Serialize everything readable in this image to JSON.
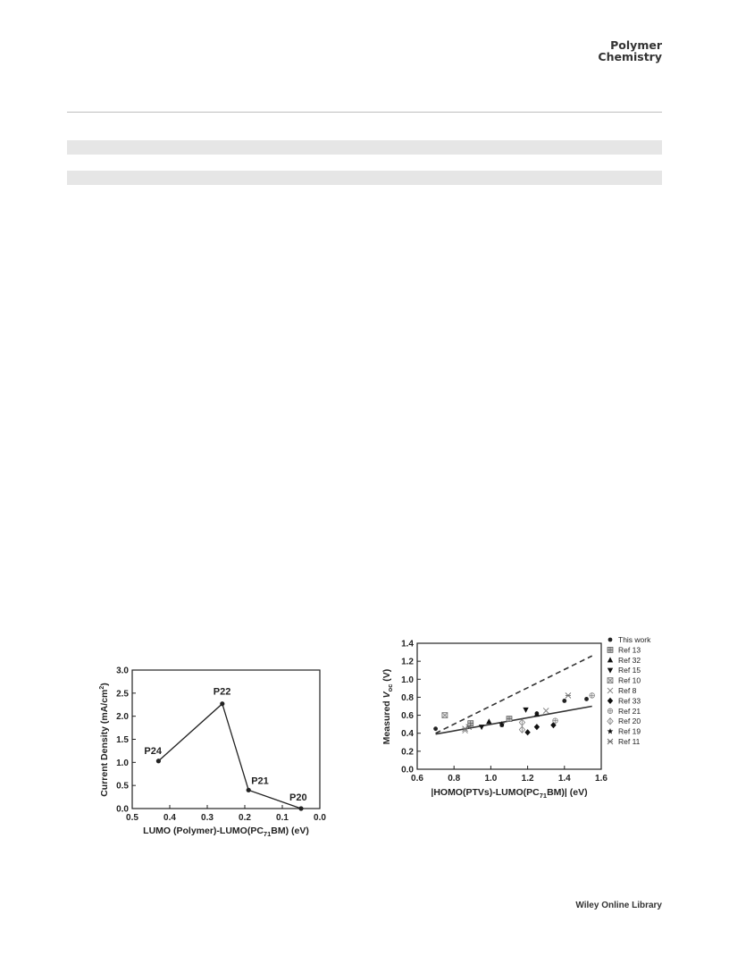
{
  "header": {
    "journal_line1": "Polymer",
    "journal_line2": "Chemistry"
  },
  "footer": {
    "text": "Wiley Online Library"
  },
  "chart_data": [
    {
      "type": "line",
      "title": "",
      "xlabel": "LUMO (Polymer)-LUMO(PC71BM) (eV)",
      "ylabel": "Current Density (mA/cm2)",
      "xlim": [
        0.5,
        0.0
      ],
      "ylim": [
        0.0,
        3.0
      ],
      "x_ticks": [
        "0.5",
        "0.4",
        "0.3",
        "0.2",
        "0.1",
        "0.0"
      ],
      "y_ticks": [
        "0.0",
        "0.5",
        "1.0",
        "1.5",
        "2.0",
        "2.5",
        "3.0"
      ],
      "points": [
        {
          "label": "P24",
          "x": 0.43,
          "y": 1.03
        },
        {
          "label": "P22",
          "x": 0.26,
          "y": 2.27
        },
        {
          "label": "P21",
          "x": 0.19,
          "y": 0.4
        },
        {
          "label": "P20",
          "x": 0.05,
          "y": 0.0
        }
      ]
    },
    {
      "type": "scatter",
      "title": "",
      "xlabel": "|HOMO(PTVs)-LUMO(PC71BM)| (eV)",
      "ylabel": "Measured Voc (V)",
      "xlim": [
        0.6,
        1.6
      ],
      "ylim": [
        0.0,
        1.4
      ],
      "x_ticks": [
        "0.6",
        "0.8",
        "1.0",
        "1.2",
        "1.4",
        "1.6"
      ],
      "y_ticks": [
        "0.0",
        "0.2",
        "0.4",
        "0.6",
        "0.8",
        "1.0",
        "1.2",
        "1.4"
      ],
      "legend_position": "right",
      "series": [
        {
          "name": "This work",
          "marker": "circle",
          "points": [
            [
              0.7,
              0.45
            ],
            [
              1.06,
              0.49
            ],
            [
              1.25,
              0.62
            ],
            [
              1.4,
              0.76
            ],
            [
              1.52,
              0.78
            ]
          ]
        },
        {
          "name": "Ref 13",
          "marker": "square-hatched",
          "points": [
            [
              0.89,
              0.51
            ],
            [
              1.1,
              0.56
            ]
          ]
        },
        {
          "name": "Ref 32",
          "marker": "triangle-up",
          "points": [
            [
              0.99,
              0.53
            ],
            [
              1.25,
              0.61
            ]
          ]
        },
        {
          "name": "Ref 15",
          "marker": "triangle-down",
          "points": [
            [
              0.95,
              0.47
            ],
            [
              1.19,
              0.66
            ]
          ]
        },
        {
          "name": "Ref 10",
          "marker": "square-cross",
          "points": [
            [
              0.75,
              0.6
            ]
          ]
        },
        {
          "name": "Ref 8",
          "marker": "x",
          "points": [
            [
              0.86,
              0.43
            ],
            [
              1.3,
              0.65
            ]
          ]
        },
        {
          "name": "Ref 33",
          "marker": "diamond",
          "points": [
            [
              1.2,
              0.41
            ],
            [
              1.25,
              0.47
            ],
            [
              1.34,
              0.49
            ]
          ]
        },
        {
          "name": "Ref 21",
          "marker": "circle-cross",
          "points": [
            [
              1.35,
              0.54
            ],
            [
              1.55,
              0.82
            ]
          ]
        },
        {
          "name": "Ref 20",
          "marker": "diamond-cross",
          "points": [
            [
              1.17,
              0.44
            ],
            [
              1.17,
              0.52
            ]
          ]
        },
        {
          "name": "Ref 19",
          "marker": "star",
          "points": [
            [
              1.06,
              0.5
            ]
          ]
        },
        {
          "name": "Ref 11",
          "marker": "asterisk",
          "points": [
            [
              0.86,
              0.45
            ],
            [
              0.88,
              0.47
            ],
            [
              1.42,
              0.82
            ]
          ]
        }
      ],
      "lines": [
        {
          "style": "solid",
          "x": [
            0.7,
            1.55
          ],
          "y": [
            0.39,
            0.7
          ]
        },
        {
          "style": "dashed",
          "x": [
            0.7,
            1.55
          ],
          "y": [
            0.4,
            1.26
          ]
        }
      ]
    }
  ]
}
